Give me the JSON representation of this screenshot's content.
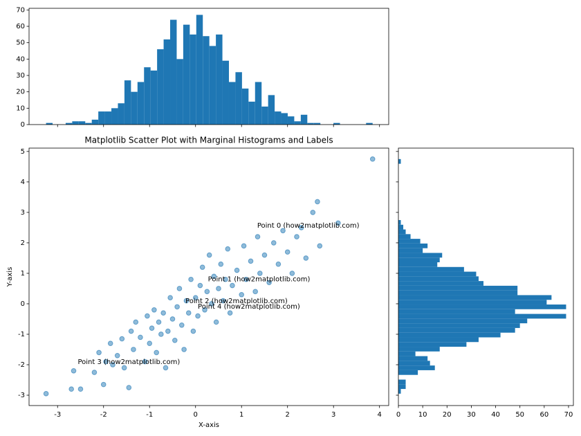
{
  "chart_data": [
    {
      "type": "histogram",
      "orientation": "vertical",
      "color": "#1f77b4",
      "bins": [
        -3.25,
        -3.108,
        -2.966,
        -2.824,
        -2.682,
        -2.54,
        -2.398,
        -2.256,
        -2.114,
        -1.972,
        -1.83,
        -1.688,
        -1.546,
        -1.404,
        -1.262,
        -1.12,
        -0.978,
        -0.836,
        -0.694,
        -0.552,
        -0.41,
        -0.268,
        -0.126,
        0.016,
        0.158,
        0.3,
        0.442,
        0.584,
        0.726,
        0.868,
        1.01,
        1.152,
        1.294,
        1.436,
        1.578,
        1.72,
        1.862,
        2.004,
        2.146,
        2.288,
        2.43,
        2.572,
        2.714,
        2.856,
        2.998,
        3.14,
        3.282,
        3.424,
        3.566,
        3.708,
        3.85
      ],
      "counts": [
        1,
        0,
        0,
        1,
        2,
        2,
        1,
        3,
        8,
        8,
        10,
        13,
        27,
        20,
        26,
        35,
        33,
        46,
        52,
        64,
        40,
        61,
        55,
        67,
        54,
        48,
        55,
        39,
        26,
        32,
        22,
        14,
        26,
        11,
        18,
        8,
        7,
        5,
        2,
        6,
        1,
        1,
        0,
        0,
        1,
        0,
        0,
        0,
        0,
        1
      ],
      "ylim": [
        0,
        71
      ],
      "yticks": [
        0,
        10,
        20,
        30,
        40,
        50,
        60,
        70
      ]
    },
    {
      "type": "scatter",
      "title": "Matplotlib Scatter Plot with Marginal Histograms and Labels",
      "x_label": "X-axis",
      "y_label": "Y-axis",
      "color": "#1f77b4",
      "xlim": [
        -3.62,
        4.2
      ],
      "ylim": [
        -3.34,
        5.11
      ],
      "xticks": [
        -3,
        -2,
        -1,
        0,
        1,
        2,
        3,
        4
      ],
      "yticks": [
        -3,
        -2,
        -1,
        0,
        1,
        2,
        3,
        4,
        5
      ],
      "x": [
        -3.25,
        -2.7,
        -2.65,
        -2.5,
        -2.2,
        -2.1,
        -2.0,
        -1.95,
        -1.85,
        -1.8,
        -1.7,
        -1.6,
        -1.55,
        -1.45,
        -1.4,
        -1.35,
        -1.3,
        -1.2,
        -1.1,
        -1.05,
        -1.0,
        -0.95,
        -0.9,
        -0.85,
        -0.8,
        -0.75,
        -0.7,
        -0.65,
        -0.6,
        -0.55,
        -0.5,
        -0.45,
        -0.4,
        -0.35,
        -0.3,
        -0.25,
        -0.2,
        -0.15,
        -0.1,
        -0.05,
        0,
        0.05,
        0.1,
        0.15,
        0.2,
        0.25,
        0.3,
        0.35,
        0.4,
        0.45,
        0.5,
        0.55,
        0.6,
        0.65,
        0.7,
        0.75,
        0.8,
        0.9,
        1.0,
        1.05,
        1.1,
        1.2,
        1.3,
        1.35,
        1.4,
        1.5,
        1.6,
        1.7,
        1.8,
        1.9,
        2.0,
        2.1,
        2.2,
        2.3,
        2.4,
        2.55,
        2.65,
        2.7,
        3.1,
        3.85
      ],
      "y": [
        -2.95,
        -2.8,
        -2.2,
        -2.8,
        -2.25,
        -1.6,
        -2.65,
        -1.9,
        -1.3,
        -2.0,
        -1.7,
        -1.15,
        -2.1,
        -2.75,
        -0.9,
        -1.5,
        -0.6,
        -1.1,
        -1.9,
        -0.4,
        -1.3,
        -0.8,
        -0.2,
        -1.6,
        -0.6,
        -1.0,
        -0.3,
        -2.1,
        -0.9,
        0.2,
        -0.5,
        -1.2,
        -0.1,
        0.5,
        -0.7,
        -1.5,
        0.1,
        -0.3,
        0.8,
        -0.9,
        0.2,
        -0.4,
        0.6,
        1.2,
        -0.2,
        0.4,
        1.6,
        0.0,
        0.9,
        -0.6,
        0.5,
        1.3,
        0.1,
        0.8,
        1.8,
        -0.3,
        0.6,
        1.1,
        0.3,
        1.9,
        0.8,
        1.4,
        0.4,
        2.2,
        1.0,
        1.6,
        0.7,
        2.0,
        1.3,
        2.4,
        1.7,
        1.0,
        2.2,
        2.5,
        1.5,
        3.0,
        3.35,
        1.9,
        2.65,
        4.75
      ],
      "annotations": [
        {
          "text": "Point 0 (how2matplotlib.com)",
          "x": 1.34,
          "y": 2.57
        },
        {
          "text": "Point 1 (how2matplotlib.com)",
          "x": 0.27,
          "y": 0.8
        },
        {
          "text": "Point 2 (how2matplotlib.com)",
          "x": -0.22,
          "y": 0.09
        },
        {
          "text": "Point 3 (how2matplotlib.com)",
          "x": -2.56,
          "y": -1.91
        },
        {
          "text": "Point 4 (how2matplotlib.com)",
          "x": 0.05,
          "y": -0.09
        }
      ]
    },
    {
      "type": "histogram",
      "orientation": "horizontal",
      "color": "#1f77b4",
      "bins": [
        -2.95,
        -2.796,
        -2.642,
        -2.488,
        -2.334,
        -2.18,
        -2.026,
        -1.872,
        -1.718,
        -1.564,
        -1.41,
        -1.256,
        -1.102,
        -0.948,
        -0.794,
        -0.64,
        -0.486,
        -0.332,
        -0.178,
        -0.024,
        0.13,
        0.284,
        0.438,
        0.592,
        0.746,
        0.9,
        1.054,
        1.208,
        1.362,
        1.516,
        1.67,
        1.824,
        1.978,
        2.132,
        2.286,
        2.44,
        2.594,
        2.748,
        2.902,
        3.056,
        3.21,
        3.364,
        3.518,
        3.672,
        3.826,
        3.98,
        4.134,
        4.288,
        4.442,
        4.596,
        4.75
      ],
      "counts": [
        1,
        3,
        3,
        0,
        8,
        15,
        13,
        12,
        7,
        17,
        28,
        33,
        42,
        48,
        50,
        53,
        69,
        48,
        69,
        61,
        63,
        49,
        49,
        35,
        33,
        32,
        27,
        16,
        17,
        18,
        10,
        12,
        9,
        5,
        3,
        2,
        1,
        0,
        0,
        0,
        0,
        0,
        0,
        0,
        0,
        0,
        0,
        0,
        0,
        1
      ],
      "xlim": [
        0,
        72
      ],
      "xticks": [
        0,
        10,
        20,
        30,
        40,
        50,
        60,
        70
      ]
    }
  ]
}
